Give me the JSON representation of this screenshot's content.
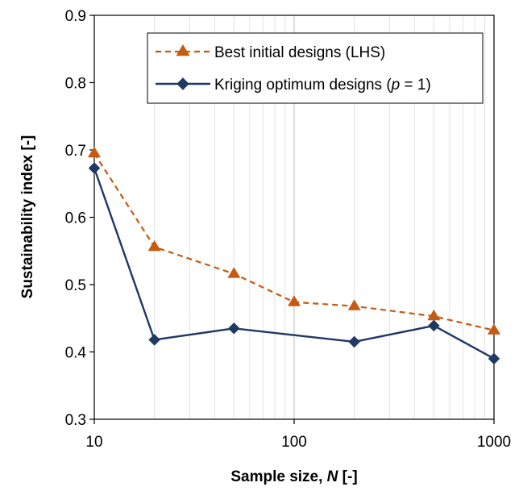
{
  "chart_data": {
    "type": "line",
    "x": [
      10,
      20,
      50,
      100,
      200,
      500,
      1000
    ],
    "x_scale": "log",
    "xlim": [
      10,
      1000
    ],
    "xticks": [
      10,
      100,
      1000
    ],
    "xtick_labels": [
      "10",
      "100",
      "1000"
    ],
    "ylim": [
      0.3,
      0.9
    ],
    "yticks": [
      0.3,
      0.4,
      0.5,
      0.6,
      0.7,
      0.8,
      0.9
    ],
    "ytick_labels": [
      "0.3",
      "0.4",
      "0.5",
      "0.6",
      "0.7",
      "0.8",
      "0.9"
    ],
    "grid": "minor vertical gridlines",
    "legend_position": "top-right",
    "xlabel": {
      "main": "Sample size, ",
      "var": "N",
      "unit": " [-]"
    },
    "ylabel": "Sustainability index [-]",
    "series": [
      {
        "name": "Best initial designs (LHS)",
        "legend": {
          "text": "Best initial designs (LHS)"
        },
        "color": "#C55A11",
        "line_style": "dashed",
        "marker": "triangle",
        "values": [
          0.695,
          0.556,
          0.516,
          0.474,
          0.468,
          0.453,
          0.432
        ]
      },
      {
        "name": "Kriging optimum designs (p = 1)",
        "legend": {
          "pre": "Kriging optimum designs (",
          "var": "p",
          "post": " = 1)"
        },
        "color": "#1F3864",
        "line_style": "solid",
        "marker": "diamond",
        "values": [
          0.673,
          0.418,
          0.435,
          null,
          0.415,
          0.439,
          0.39
        ]
      }
    ]
  }
}
